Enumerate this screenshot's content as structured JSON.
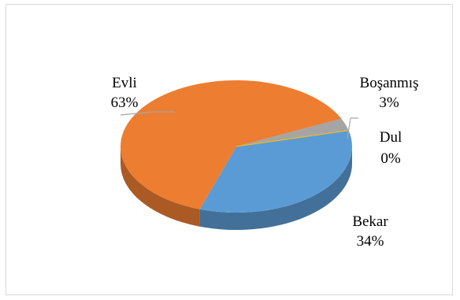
{
  "chart_data": {
    "type": "pie",
    "style": "3d",
    "title": "",
    "legend": "none",
    "slices": [
      {
        "label": "Bekar",
        "value": 34,
        "percent_label": "34%",
        "color": "#5b9bd5"
      },
      {
        "label": "Evli",
        "value": 63,
        "percent_label": "63%",
        "color": "#ed7d31"
      },
      {
        "label": "Boşanmış",
        "value": 3,
        "percent_label": "3%",
        "color": "#a5a5a5"
      },
      {
        "label": "Dul",
        "value": 0,
        "percent_label": "0%",
        "color": "#ffc000"
      }
    ]
  }
}
